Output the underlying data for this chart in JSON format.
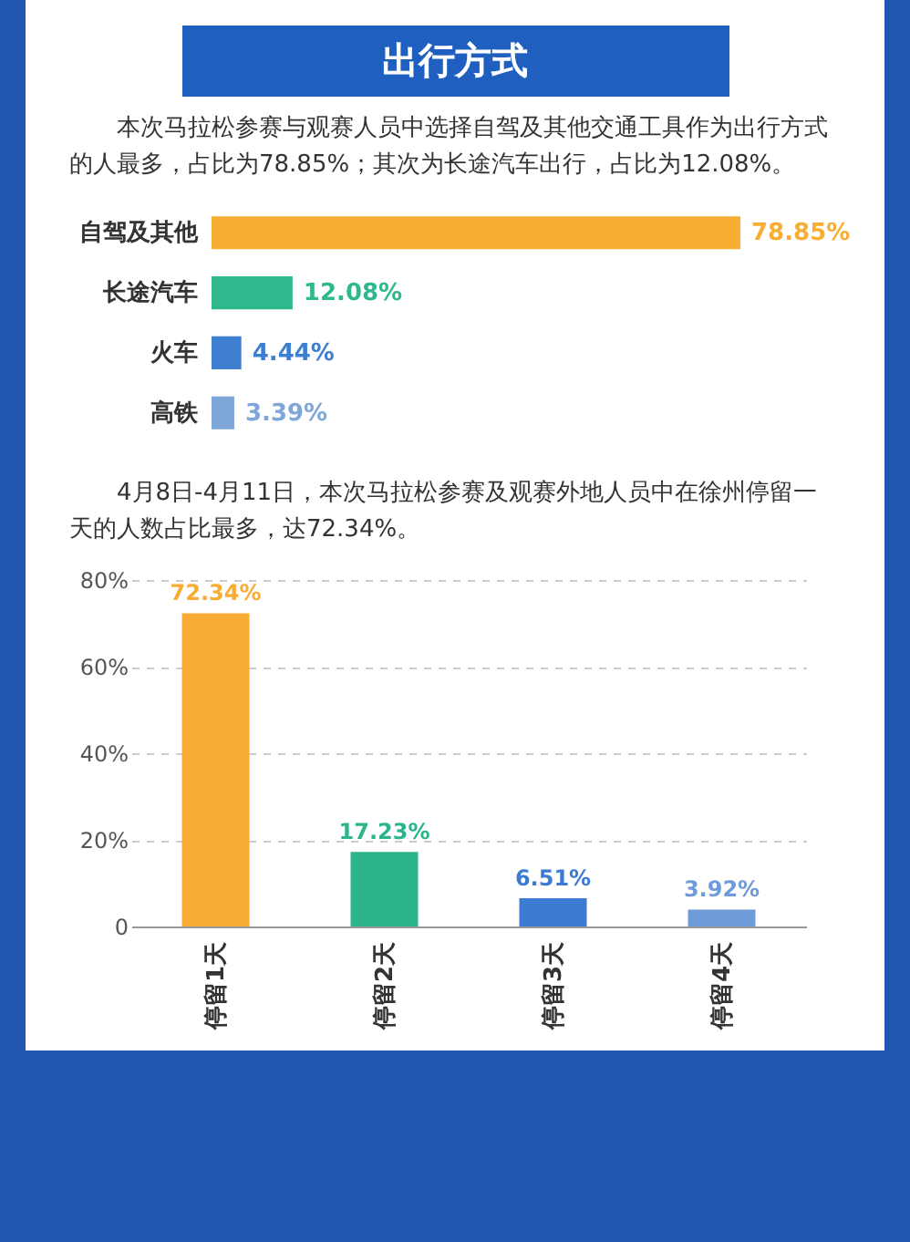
{
  "chart_data": [
    {
      "type": "bar",
      "orientation": "horizontal",
      "title": "出行方式",
      "subtitle": "本次马拉松参赛与观赛人员中选择自驾及其他交通工具作为出行方式的人最多，占比为78.85%；其次为长途汽车出行，占比为12.08%。",
      "categories": [
        "自驾及其他",
        "长途汽车",
        "火车",
        "高铁"
      ],
      "values": [
        78.85,
        12.08,
        4.44,
        3.39
      ],
      "colors": [
        "#f7ae32",
        "#2fb88d",
        "#3f7fd1",
        "#7fa6d9"
      ],
      "value_labels": [
        "78.85%",
        "12.08%",
        "4.44%",
        "3.39%"
      ]
    },
    {
      "type": "bar",
      "subtitle": "4月8日-4月11日，本次马拉松参赛及观赛外地人员中在徐州停留一天的人数占比最多，达72.34%。",
      "categories": [
        "停留1天",
        "停留2天",
        "停留3天",
        "停留4天"
      ],
      "values": [
        72.34,
        17.23,
        6.51,
        3.92
      ],
      "colors": [
        "#f8ac35",
        "#2cb58c",
        "#3d7bd3",
        "#6f9bd8"
      ],
      "value_labels": [
        "72.34%",
        "17.23%",
        "6.51%",
        "3.92%"
      ],
      "ylim": [
        0,
        80
      ],
      "yticks": [
        0,
        {
          "value": 20,
          "label": "20%"
        },
        {
          "value": 40,
          "label": "40%"
        },
        {
          "value": 60,
          "label": "60%"
        },
        {
          "value": 80,
          "label": "80%"
        }
      ],
      "grid": "y"
    }
  ]
}
